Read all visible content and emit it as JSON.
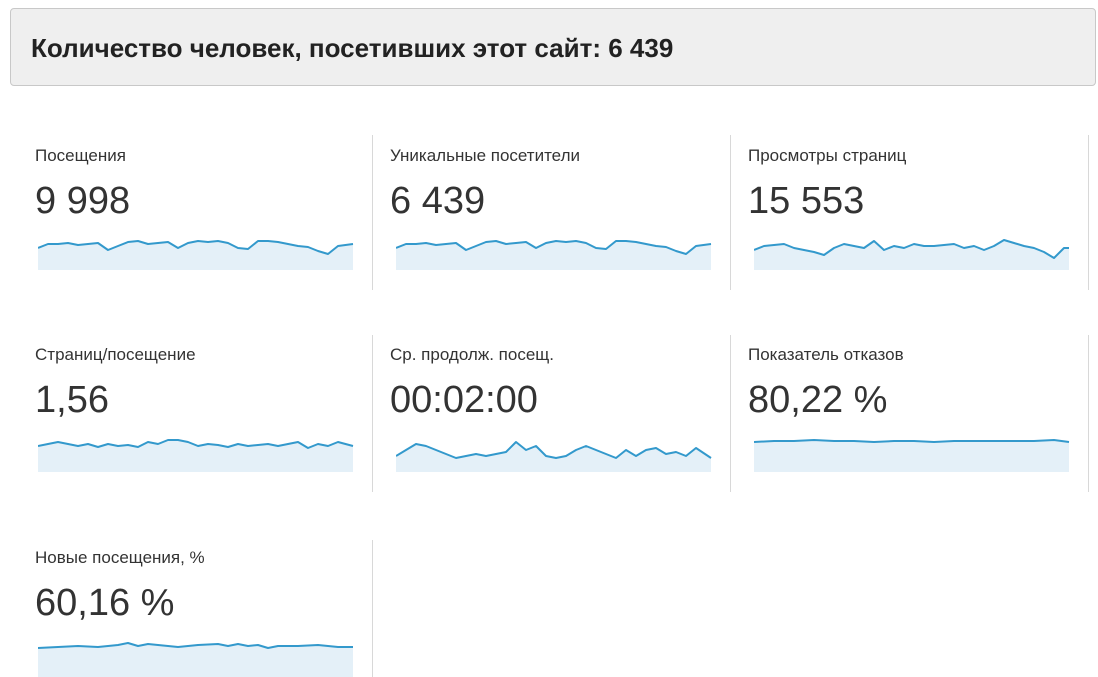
{
  "header": {
    "title": "Количество человек, посетивших этот сайт: 6 439"
  },
  "metrics": [
    {
      "label": "Посещения",
      "value": "9 998"
    },
    {
      "label": "Уникальные посетители",
      "value": "6 439"
    },
    {
      "label": "Просмотры страниц",
      "value": "15 553"
    },
    {
      "label": "Страниц/посещение",
      "value": "1,56"
    },
    {
      "label": "Ср. продолж. посещ.",
      "value": "00:02:00"
    },
    {
      "label": "Показатель отказов",
      "value": "80,22 %"
    },
    {
      "label": "Новые посещения, %",
      "value": "60,16 %"
    }
  ]
}
